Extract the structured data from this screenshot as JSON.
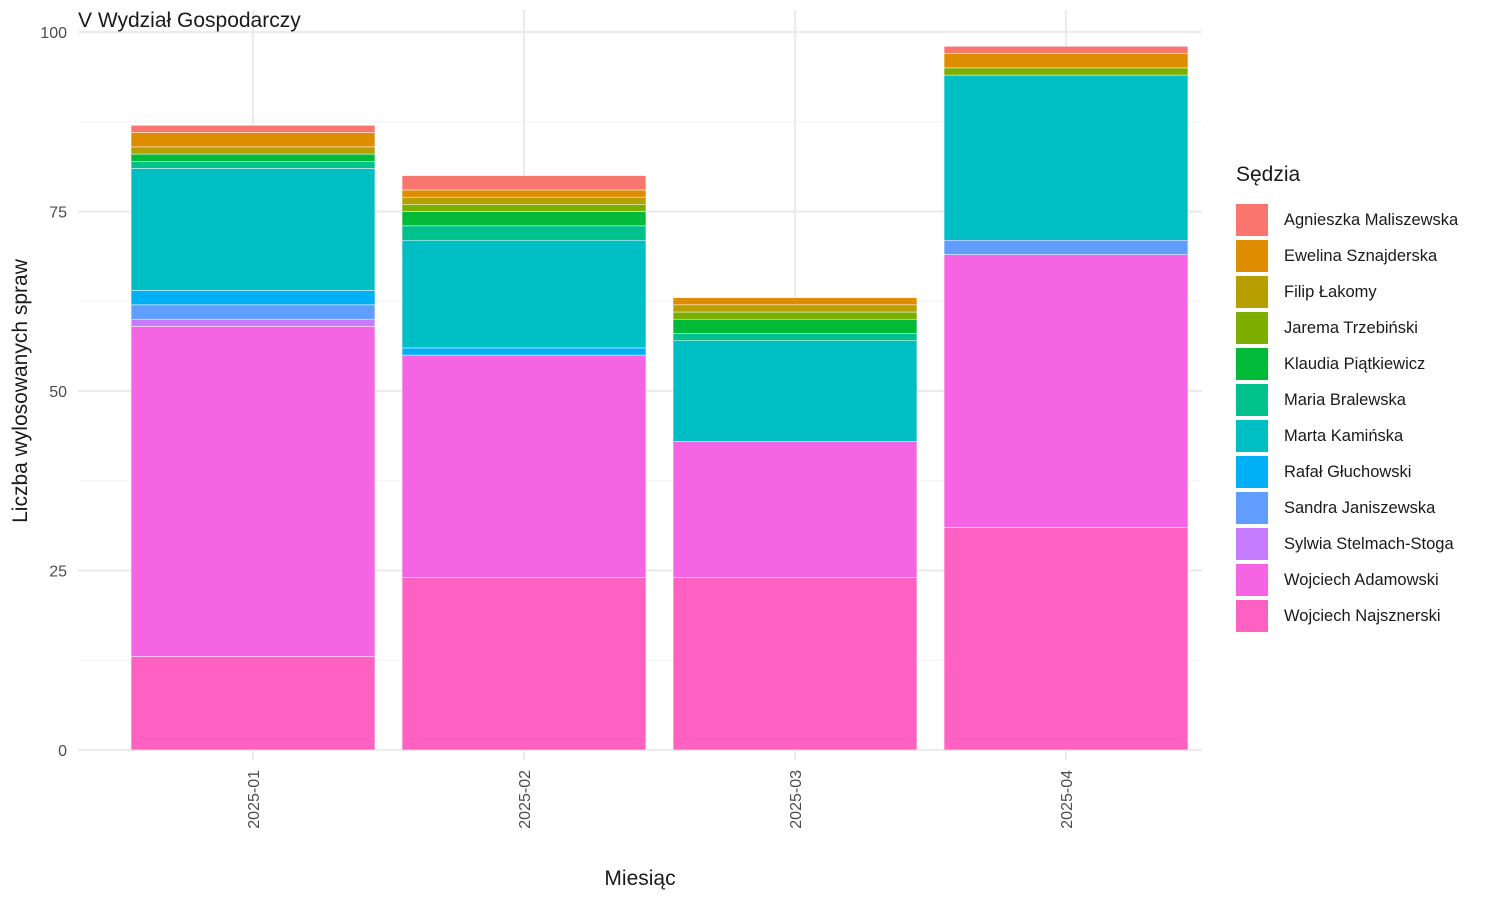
{
  "chart_data": {
    "type": "bar",
    "stacked": true,
    "title": "V Wydział Gospodarczy",
    "xlabel": "Miesiąc",
    "ylabel": "Liczba wylosowanych spraw",
    "ylim": [
      0,
      100
    ],
    "y_ticks": [
      "0",
      "25",
      "50",
      "75",
      "100"
    ],
    "y_tick_values": [
      0,
      25,
      50,
      75,
      100
    ],
    "categories": [
      "2025-01",
      "2025-02",
      "2025-03",
      "2025-04"
    ],
    "grid": true,
    "legend_position": "right",
    "legend_title": "Sędzia",
    "series": [
      {
        "name": "Wojciech Najsznerski",
        "color": "#FF61C3",
        "values": [
          13,
          24,
          24,
          31
        ]
      },
      {
        "name": "Wojciech Adamowski",
        "color": "#F564E3",
        "values": [
          46,
          31,
          19,
          38
        ]
      },
      {
        "name": "Sylwia Stelmach-Stoga",
        "color": "#C77CFF",
        "values": [
          1,
          0,
          0,
          0
        ]
      },
      {
        "name": "Sandra Janiszewska",
        "color": "#619CFF",
        "values": [
          2,
          0,
          0,
          2
        ]
      },
      {
        "name": "Rafał Głuchowski",
        "color": "#00B0F6",
        "values": [
          2,
          1,
          0,
          0
        ]
      },
      {
        "name": "Marta Kamińska",
        "color": "#00BFC4",
        "values": [
          17,
          15,
          14,
          23
        ]
      },
      {
        "name": "Maria Bralewska",
        "color": "#00C08B",
        "values": [
          1,
          2,
          1,
          0
        ]
      },
      {
        "name": "Klaudia Piątkiewicz",
        "color": "#00BA38",
        "values": [
          1,
          2,
          2,
          0
        ]
      },
      {
        "name": "Jarema Trzebiński",
        "color": "#7CAE00",
        "values": [
          0,
          1,
          1,
          1
        ]
      },
      {
        "name": "Filip Łakomy",
        "color": "#B79F00",
        "values": [
          1,
          1,
          1,
          0
        ]
      },
      {
        "name": "Ewelina Sznajderska",
        "color": "#DE8C00",
        "values": [
          2,
          1,
          1,
          2
        ]
      },
      {
        "name": "Agnieszka Maliszewska",
        "color": "#F8766D",
        "values": [
          1,
          2,
          0,
          1
        ]
      }
    ],
    "legend_order": [
      "Agnieszka Maliszewska",
      "Ewelina Sznajderska",
      "Filip Łakomy",
      "Jarema Trzebiński",
      "Klaudia Piątkiewicz",
      "Maria Bralewska",
      "Marta Kamińska",
      "Rafał Głuchowski",
      "Sandra Janiszewska",
      "Sylwia Stelmach-Stoga",
      "Wojciech Adamowski",
      "Wojciech Najsznerski"
    ]
  }
}
